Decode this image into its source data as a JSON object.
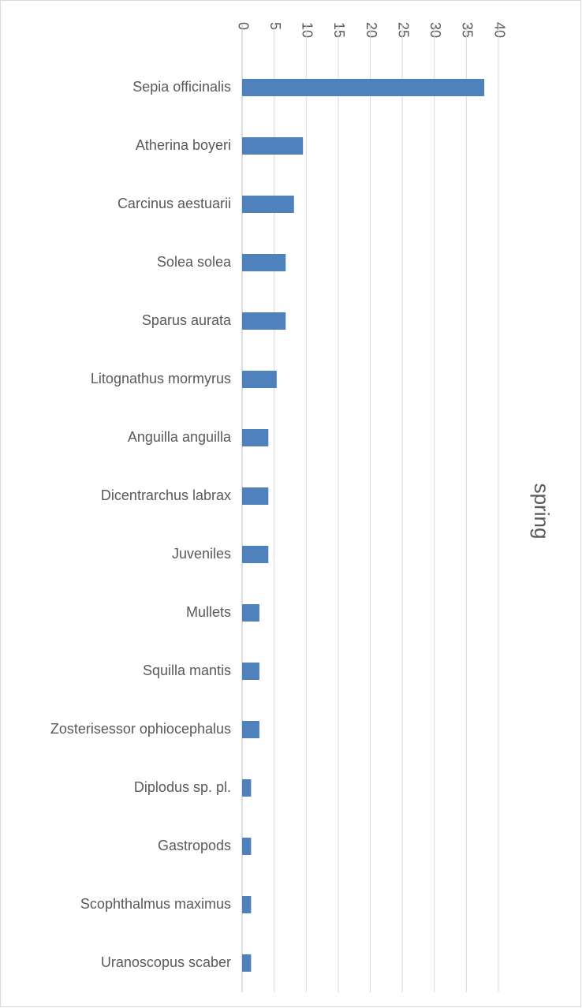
{
  "chart_data": {
    "type": "bar",
    "orientation": "horizontal",
    "title": "spring",
    "categories": [
      "Sepia officinalis",
      "Atherina boyeri",
      "Carcinus aestuarii",
      "Solea solea",
      "Sparus aurata",
      "Litognathus mormyrus",
      "Anguilla anguilla",
      "Dicentrarchus labrax",
      "Juveniles",
      "Mullets",
      "Squilla mantis",
      "Zosterisessor ophiocephalus",
      "Diplodus sp. pl.",
      "Gastropods",
      "Scophthalmus maximus",
      "Uranoscopus scaber"
    ],
    "values": [
      37.8,
      9.5,
      8.1,
      6.8,
      6.8,
      5.4,
      4.1,
      4.1,
      4.1,
      2.7,
      2.7,
      2.7,
      1.4,
      1.4,
      1.4,
      1.4
    ],
    "color": "#4f81bd",
    "xlim": [
      0,
      40
    ],
    "xticks": [
      0,
      5,
      10,
      15,
      20,
      25,
      30,
      35,
      40
    ],
    "grid": true
  }
}
